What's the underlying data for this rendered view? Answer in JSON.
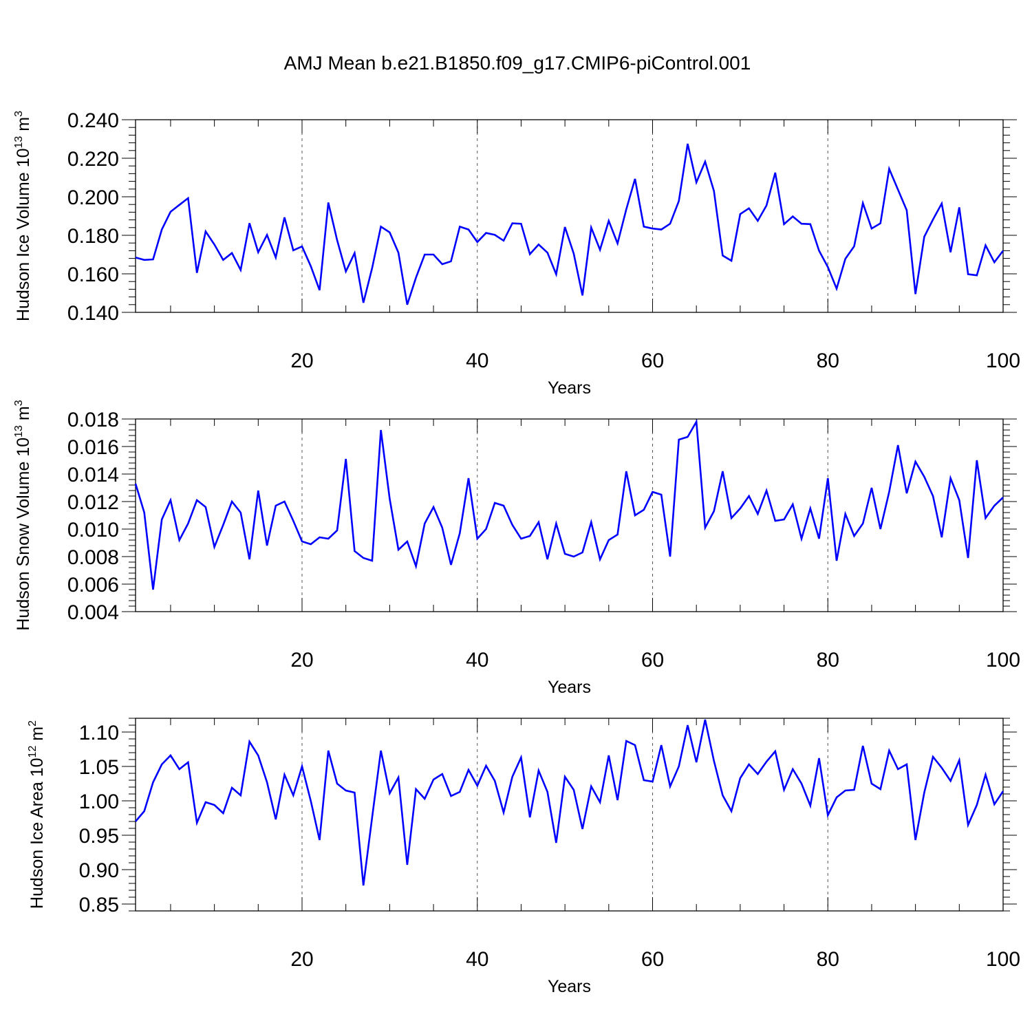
{
  "title": "AMJ Mean b.e21.B1850.f09_g17.CMIP6-piControl.001",
  "colors": {
    "line": "#0000ff",
    "axes": "#000000",
    "grid": "#555555"
  },
  "chart_data": [
    {
      "type": "line",
      "ylabel": "Hudson Ice Volume 10",
      "ylabel_sup": "13",
      "ylabel_unit": " m",
      "ylabel_unit_sup": "3",
      "xlabel": "Years",
      "xlim": [
        1,
        100
      ],
      "ylim": [
        0.14,
        0.24
      ],
      "yticks": [
        "0.140",
        "0.160",
        "0.180",
        "0.200",
        "0.220",
        "0.240"
      ],
      "xticks": [
        "20",
        "40",
        "60",
        "80",
        "100"
      ],
      "grid_x": [
        20,
        40,
        60,
        80
      ],
      "x": [
        1,
        2,
        3,
        4,
        5,
        6,
        7,
        8,
        9,
        10,
        11,
        12,
        13,
        14,
        15,
        16,
        17,
        18,
        19,
        20,
        21,
        22,
        23,
        24,
        25,
        26,
        27,
        28,
        29,
        30,
        31,
        32,
        33,
        34,
        35,
        36,
        37,
        38,
        39,
        40,
        41,
        42,
        43,
        44,
        45,
        46,
        47,
        48,
        49,
        50,
        51,
        52,
        53,
        54,
        55,
        56,
        57,
        58,
        59,
        60,
        61,
        62,
        63,
        64,
        65,
        66,
        67,
        68,
        69,
        70,
        71,
        72,
        73,
        74,
        75,
        76,
        77,
        78,
        79,
        80,
        81,
        82,
        83,
        84,
        85,
        86,
        87,
        88,
        89,
        90,
        91,
        92,
        93,
        94,
        95,
        96,
        97,
        98,
        99,
        100
      ],
      "series": [
        {
          "values": [
            0.1685,
            0.1672,
            0.1675,
            0.183,
            0.1922,
            0.1958,
            0.1993,
            0.1605,
            0.182,
            0.1752,
            0.1672,
            0.1708,
            0.162,
            0.1863,
            0.1712,
            0.1802,
            0.1685,
            0.1893,
            0.1722,
            0.1742,
            0.164,
            0.1515,
            0.197,
            0.1775,
            0.1612,
            0.1708,
            0.145,
            0.163,
            0.1845,
            0.1815,
            0.171,
            0.144,
            0.158,
            0.17,
            0.17,
            0.165,
            0.1665,
            0.1845,
            0.183,
            0.1765,
            0.1812,
            0.1802,
            0.1772,
            0.1862,
            0.186,
            0.1702,
            0.1752,
            0.171,
            0.1598,
            0.1843,
            0.1705,
            0.1488,
            0.184,
            0.1725,
            0.1875,
            0.1758,
            0.1935,
            0.2093,
            0.1845,
            0.1835,
            0.183,
            0.186,
            0.1978,
            0.2275,
            0.2075,
            0.2182,
            0.203,
            0.1695,
            0.1668,
            0.191,
            0.194,
            0.1875,
            0.1955,
            0.2125,
            0.1858,
            0.1898,
            0.186,
            0.1858,
            0.172,
            0.1635,
            0.1523,
            0.1678,
            0.1743,
            0.1967,
            0.1835,
            0.1862,
            0.2145,
            0.2037,
            0.193,
            0.1495,
            0.1792,
            0.1882,
            0.1965,
            0.1712,
            0.1945,
            0.1598,
            0.1592,
            0.1748,
            0.166,
            0.172
          ]
        }
      ]
    },
    {
      "type": "line",
      "ylabel": "Hudson Snow Volume 10",
      "ylabel_sup": "13",
      "ylabel_unit": " m",
      "ylabel_unit_sup": "3",
      "xlabel": "Years",
      "xlim": [
        1,
        100
      ],
      "ylim": [
        0.004,
        0.018
      ],
      "yticks": [
        "0.004",
        "0.006",
        "0.008",
        "0.010",
        "0.012",
        "0.014",
        "0.016",
        "0.018"
      ],
      "xticks": [
        "20",
        "40",
        "60",
        "80",
        "100"
      ],
      "grid_x": [
        20,
        40,
        60,
        80
      ],
      "x": [
        1,
        2,
        3,
        4,
        5,
        6,
        7,
        8,
        9,
        10,
        11,
        12,
        13,
        14,
        15,
        16,
        17,
        18,
        19,
        20,
        21,
        22,
        23,
        24,
        25,
        26,
        27,
        28,
        29,
        30,
        31,
        32,
        33,
        34,
        35,
        36,
        37,
        38,
        39,
        40,
        41,
        42,
        43,
        44,
        45,
        46,
        47,
        48,
        49,
        50,
        51,
        52,
        53,
        54,
        55,
        56,
        57,
        58,
        59,
        60,
        61,
        62,
        63,
        64,
        65,
        66,
        67,
        68,
        69,
        70,
        71,
        72,
        73,
        74,
        75,
        76,
        77,
        78,
        79,
        80,
        81,
        82,
        83,
        84,
        85,
        86,
        87,
        88,
        89,
        90,
        91,
        92,
        93,
        94,
        95,
        96,
        97,
        98,
        99,
        100
      ],
      "series": [
        {
          "values": [
            0.0133,
            0.0112,
            0.0056,
            0.0107,
            0.0121,
            0.0092,
            0.0104,
            0.0121,
            0.0116,
            0.0087,
            0.0103,
            0.012,
            0.0112,
            0.0078,
            0.0128,
            0.0088,
            0.0117,
            0.012,
            0.0106,
            0.0091,
            0.0089,
            0.0094,
            0.0093,
            0.0099,
            0.0151,
            0.0084,
            0.0079,
            0.0077,
            0.0172,
            0.0122,
            0.0085,
            0.0091,
            0.0073,
            0.0104,
            0.0116,
            0.0101,
            0.0074,
            0.0097,
            0.0137,
            0.0093,
            0.01,
            0.0119,
            0.0117,
            0.0103,
            0.0093,
            0.0095,
            0.0105,
            0.0078,
            0.0104,
            0.0082,
            0.008,
            0.0083,
            0.0105,
            0.0078,
            0.0092,
            0.0096,
            0.0142,
            0.011,
            0.0114,
            0.0127,
            0.0125,
            0.008,
            0.0165,
            0.0167,
            0.0178,
            0.0101,
            0.0113,
            0.0142,
            0.0108,
            0.0115,
            0.0124,
            0.0111,
            0.0128,
            0.0106,
            0.0107,
            0.0118,
            0.0093,
            0.0115,
            0.0093,
            0.0137,
            0.0077,
            0.0111,
            0.0095,
            0.0104,
            0.013,
            0.01,
            0.0127,
            0.0161,
            0.0126,
            0.0149,
            0.0138,
            0.0124,
            0.0094,
            0.0137,
            0.0121,
            0.0079,
            0.015,
            0.0108,
            0.0117,
            0.0123
          ]
        }
      ]
    },
    {
      "type": "line",
      "ylabel": "Hudson Ice Area 10",
      "ylabel_sup": "12",
      "ylabel_unit": " m",
      "ylabel_unit_sup": "2",
      "xlabel": "Years",
      "xlim": [
        1,
        100
      ],
      "ylim": [
        0.84,
        1.12
      ],
      "yticks": [
        "0.85",
        "0.90",
        "0.95",
        "1.00",
        "1.05",
        "1.10"
      ],
      "xticks": [
        "20",
        "40",
        "60",
        "80",
        "100"
      ],
      "grid_x": [
        20,
        40,
        60,
        80
      ],
      "x": [
        1,
        2,
        3,
        4,
        5,
        6,
        7,
        8,
        9,
        10,
        11,
        12,
        13,
        14,
        15,
        16,
        17,
        18,
        19,
        20,
        21,
        22,
        23,
        24,
        25,
        26,
        27,
        28,
        29,
        30,
        31,
        32,
        33,
        34,
        35,
        36,
        37,
        38,
        39,
        40,
        41,
        42,
        43,
        44,
        45,
        46,
        47,
        48,
        49,
        50,
        51,
        52,
        53,
        54,
        55,
        56,
        57,
        58,
        59,
        60,
        61,
        62,
        63,
        64,
        65,
        66,
        67,
        68,
        69,
        70,
        71,
        72,
        73,
        74,
        75,
        76,
        77,
        78,
        79,
        80,
        81,
        82,
        83,
        84,
        85,
        86,
        87,
        88,
        89,
        90,
        91,
        92,
        93,
        94,
        95,
        96,
        97,
        98,
        99,
        100
      ],
      "series": [
        {
          "values": [
            0.97,
            0.985,
            1.027,
            1.053,
            1.066,
            1.046,
            1.056,
            0.968,
            0.998,
            0.994,
            0.982,
            1.019,
            1.008,
            1.086,
            1.066,
            1.027,
            0.973,
            1.038,
            1.008,
            1.05,
            1.0,
            0.943,
            1.073,
            1.025,
            1.015,
            1.012,
            0.877,
            0.976,
            1.073,
            1.011,
            1.034,
            0.907,
            1.017,
            1.003,
            1.031,
            1.039,
            1.007,
            1.013,
            1.045,
            1.022,
            1.051,
            1.029,
            0.983,
            1.035,
            1.063,
            0.976,
            1.044,
            1.013,
            0.939,
            1.035,
            1.016,
            0.959,
            1.021,
            0.998,
            1.066,
            1.001,
            1.087,
            1.081,
            1.03,
            1.028,
            1.081,
            1.021,
            1.05,
            1.11,
            1.056,
            1.118,
            1.058,
            1.008,
            0.985,
            1.033,
            1.053,
            1.039,
            1.057,
            1.072,
            1.016,
            1.046,
            1.025,
            0.993,
            1.062,
            0.979,
            1.005,
            1.015,
            1.016,
            1.08,
            1.025,
            1.017,
            1.073,
            1.046,
            1.053,
            0.943,
            1.012,
            1.064,
            1.048,
            1.029,
            1.059,
            0.965,
            0.994,
            1.038,
            0.995,
            1.014
          ]
        }
      ]
    }
  ]
}
